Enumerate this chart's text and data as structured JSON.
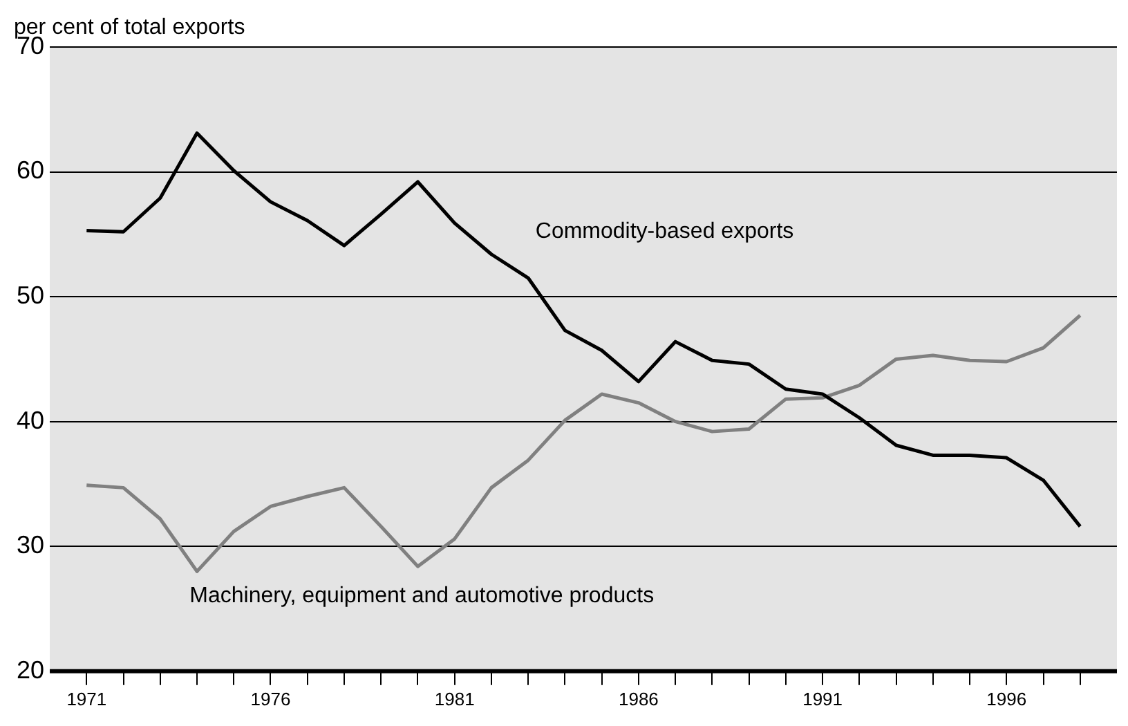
{
  "chart_data": {
    "type": "line",
    "ylabel": "per cent of total exports",
    "x": [
      1971,
      1972,
      1973,
      1974,
      1975,
      1976,
      1977,
      1978,
      1979,
      1980,
      1981,
      1982,
      1983,
      1984,
      1985,
      1986,
      1987,
      1988,
      1989,
      1990,
      1991,
      1992,
      1993,
      1994,
      1995,
      1996,
      1997,
      1998
    ],
    "series": [
      {
        "name": "Commodity-based exports",
        "color": "#000000",
        "values": [
          55.3,
          55.2,
          57.9,
          63.1,
          60.1,
          57.6,
          56.1,
          54.1,
          56.6,
          59.2,
          55.9,
          53.4,
          51.5,
          47.3,
          45.7,
          43.2,
          46.4,
          44.9,
          44.6,
          42.6,
          42.2,
          40.3,
          38.1,
          37.3,
          37.3,
          37.1,
          35.3,
          31.6
        ]
      },
      {
        "name": "Machinery, equipment and automotive products",
        "color": "#808080",
        "values": [
          34.9,
          34.7,
          32.2,
          28.0,
          31.2,
          33.2,
          34.0,
          34.7,
          31.6,
          28.4,
          30.6,
          34.7,
          36.9,
          40.1,
          42.2,
          41.5,
          40.0,
          39.2,
          39.4,
          41.8,
          41.9,
          42.9,
          45.0,
          45.3,
          44.9,
          44.8,
          45.9,
          48.5
        ]
      }
    ],
    "xlim": [
      1970,
      1999
    ],
    "xticks": [
      1971,
      {
        "value": 1972,
        "label": null
      },
      {
        "value": 1973,
        "label": null
      },
      {
        "value": 1974,
        "label": null
      },
      {
        "value": 1975,
        "label": null
      },
      1976,
      {
        "value": 1977,
        "label": null
      },
      {
        "value": 1978,
        "label": null
      },
      {
        "value": 1979,
        "label": null
      },
      {
        "value": 1980,
        "label": null
      },
      1981,
      {
        "value": 1982,
        "label": null
      },
      {
        "value": 1983,
        "label": null
      },
      {
        "value": 1984,
        "label": null
      },
      {
        "value": 1985,
        "label": null
      },
      1986,
      {
        "value": 1987,
        "label": null
      },
      {
        "value": 1988,
        "label": null
      },
      {
        "value": 1989,
        "label": null
      },
      {
        "value": 1990,
        "label": null
      },
      1991,
      {
        "value": 1992,
        "label": null
      },
      {
        "value": 1993,
        "label": null
      },
      {
        "value": 1994,
        "label": null
      },
      {
        "value": 1995,
        "label": null
      },
      1996,
      {
        "value": 1997,
        "label": null
      },
      {
        "value": 1998,
        "label": null
      }
    ],
    "ylim": [
      20,
      70
    ],
    "yticks": [
      20,
      30,
      40,
      50,
      60,
      70
    ],
    "grid": "y",
    "legend": false,
    "marker": "none",
    "line_style": "solid"
  }
}
